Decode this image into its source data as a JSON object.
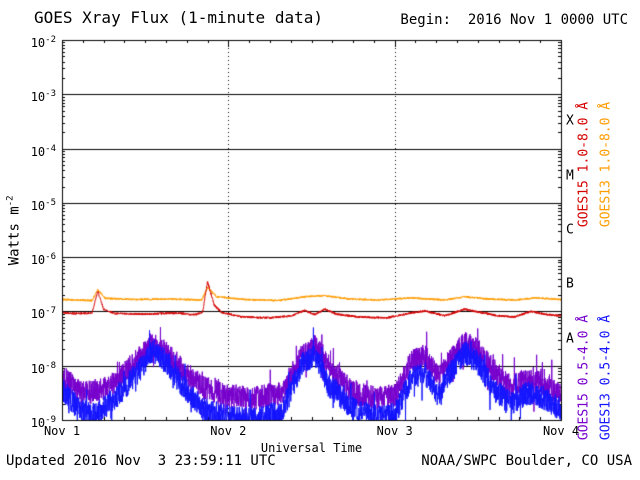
{
  "header": {
    "title": "GOES Xray Flux (1-minute data)",
    "begin_label": "Begin:  2016 Nov 1 0000 UTC"
  },
  "footer": {
    "updated": "Updated 2016 Nov  3 23:59:11 UTC",
    "credit": "NOAA/SWPC Boulder, CO USA"
  },
  "legend": {
    "labels": [
      {
        "text": "GOES15 1.0-8.0 Å",
        "color": "#d40000",
        "column": 0,
        "row": 0
      },
      {
        "text": "GOES13 1.0-8.0 Å",
        "color": "#ff9c00",
        "column": 1,
        "row": 0
      },
      {
        "text": "GOES15 0.5-4.0 Å",
        "color": "#7700cc",
        "column": 0,
        "row": 1
      },
      {
        "text": "GOES13 0.5-4.0 Å",
        "color": "#1414ff",
        "column": 1,
        "row": 1
      }
    ]
  },
  "chart_data": {
    "type": "line",
    "title": "GOES Xray Flux (1-minute data)",
    "xlabel": "Universal Time",
    "ylabel_base": "Watts m",
    "ylabel_exponent": "-2",
    "y_scale": "log10",
    "y_tick_exponents": [
      -2,
      -3,
      -4,
      -5,
      -6,
      -7,
      -8,
      -9
    ],
    "x_tick_labels": [
      "Nov 1",
      "Nov 2",
      "Nov 3",
      "Nov 4"
    ],
    "x_range_days": 3,
    "begin_time": "2016 Nov 1 0000 UTC",
    "grid": {
      "h_line_exponents": [
        -3,
        -4,
        -5,
        -6,
        -7,
        -8
      ],
      "v_dotted_line_days": [
        1,
        2
      ]
    },
    "flare_classes": [
      {
        "letter": "X",
        "lower_exponent": -4
      },
      {
        "letter": "M",
        "lower_exponent": -5
      },
      {
        "letter": "C",
        "lower_exponent": -6
      },
      {
        "letter": "B",
        "lower_exponent": -7
      },
      {
        "letter": "A",
        "lower_exponent": -8
      }
    ],
    "series": [
      {
        "name": "GOES15 1.0-8.0 Å",
        "color": "#d40000",
        "noise_log10": 0.02,
        "points_log10": [
          [
            0,
            -7.02
          ],
          [
            0.08,
            -7.04
          ],
          [
            0.18,
            -7.03
          ],
          [
            0.215,
            -6.63
          ],
          [
            0.25,
            -6.96
          ],
          [
            0.32,
            -7.04
          ],
          [
            0.5,
            -7.05
          ],
          [
            0.68,
            -7.03
          ],
          [
            0.8,
            -7.06
          ],
          [
            0.845,
            -7.02
          ],
          [
            0.875,
            -6.45
          ],
          [
            0.915,
            -6.88
          ],
          [
            0.96,
            -7.02
          ],
          [
            1.08,
            -7.1
          ],
          [
            1.25,
            -7.12
          ],
          [
            1.38,
            -7.08
          ],
          [
            1.46,
            -6.98
          ],
          [
            1.52,
            -7.06
          ],
          [
            1.58,
            -6.96
          ],
          [
            1.65,
            -7.05
          ],
          [
            1.78,
            -7.1
          ],
          [
            1.95,
            -7.12
          ],
          [
            2.08,
            -7.04
          ],
          [
            2.18,
            -6.99
          ],
          [
            2.3,
            -7.08
          ],
          [
            2.42,
            -6.96
          ],
          [
            2.52,
            -7.02
          ],
          [
            2.62,
            -7.08
          ],
          [
            2.72,
            -7.1
          ],
          [
            2.82,
            -7.0
          ],
          [
            2.92,
            -7.06
          ],
          [
            3,
            -7.08
          ]
        ]
      },
      {
        "name": "GOES13 1.0-8.0 Å",
        "color": "#ff9c00",
        "noise_log10": 0.018,
        "points_log10": [
          [
            0,
            -6.78
          ],
          [
            0.18,
            -6.8
          ],
          [
            0.215,
            -6.6
          ],
          [
            0.26,
            -6.76
          ],
          [
            0.45,
            -6.78
          ],
          [
            0.65,
            -6.77
          ],
          [
            0.84,
            -6.79
          ],
          [
            0.875,
            -6.56
          ],
          [
            0.93,
            -6.73
          ],
          [
            1.1,
            -6.78
          ],
          [
            1.3,
            -6.8
          ],
          [
            1.46,
            -6.73
          ],
          [
            1.58,
            -6.71
          ],
          [
            1.72,
            -6.77
          ],
          [
            1.9,
            -6.79
          ],
          [
            2.1,
            -6.75
          ],
          [
            2.3,
            -6.79
          ],
          [
            2.42,
            -6.73
          ],
          [
            2.56,
            -6.77
          ],
          [
            2.72,
            -6.79
          ],
          [
            2.85,
            -6.75
          ],
          [
            3,
            -6.78
          ]
        ]
      },
      {
        "name": "GOES15 0.5-4.0 Å",
        "color": "#7700cc",
        "noise_log10": 0.22,
        "points_log10": [
          [
            0,
            -8.2
          ],
          [
            0.1,
            -8.45
          ],
          [
            0.2,
            -8.5
          ],
          [
            0.32,
            -8.3
          ],
          [
            0.45,
            -7.9
          ],
          [
            0.55,
            -7.62
          ],
          [
            0.63,
            -7.78
          ],
          [
            0.72,
            -8.05
          ],
          [
            0.85,
            -8.4
          ],
          [
            1,
            -8.55
          ],
          [
            1.15,
            -8.6
          ],
          [
            1.32,
            -8.5
          ],
          [
            1.45,
            -7.78
          ],
          [
            1.52,
            -7.62
          ],
          [
            1.6,
            -8.0
          ],
          [
            1.75,
            -8.5
          ],
          [
            1.9,
            -8.6
          ],
          [
            2,
            -8.55
          ],
          [
            2.1,
            -7.92
          ],
          [
            2.18,
            -7.82
          ],
          [
            2.26,
            -8.2
          ],
          [
            2.33,
            -7.9
          ],
          [
            2.42,
            -7.58
          ],
          [
            2.5,
            -7.72
          ],
          [
            2.6,
            -8.1
          ],
          [
            2.7,
            -8.4
          ],
          [
            2.8,
            -8.22
          ],
          [
            2.9,
            -8.35
          ],
          [
            3,
            -8.5
          ]
        ]
      },
      {
        "name": "GOES13 0.5-4.0 Å",
        "color": "#1414ff",
        "noise_log10": 0.22,
        "points_log10": [
          [
            0,
            -8.45
          ],
          [
            0.1,
            -8.8
          ],
          [
            0.2,
            -8.9
          ],
          [
            0.32,
            -8.6
          ],
          [
            0.45,
            -8.15
          ],
          [
            0.55,
            -7.72
          ],
          [
            0.63,
            -7.95
          ],
          [
            0.72,
            -8.35
          ],
          [
            0.85,
            -8.8
          ],
          [
            1,
            -8.95
          ],
          [
            1.15,
            -9.0
          ],
          [
            1.32,
            -8.85
          ],
          [
            1.45,
            -7.95
          ],
          [
            1.52,
            -7.78
          ],
          [
            1.6,
            -8.35
          ],
          [
            1.75,
            -8.8
          ],
          [
            1.9,
            -8.95
          ],
          [
            2,
            -8.9
          ],
          [
            2.1,
            -8.25
          ],
          [
            2.18,
            -8.12
          ],
          [
            2.26,
            -8.55
          ],
          [
            2.33,
            -8.15
          ],
          [
            2.42,
            -7.75
          ],
          [
            2.5,
            -7.95
          ],
          [
            2.6,
            -8.45
          ],
          [
            2.7,
            -8.7
          ],
          [
            2.8,
            -8.5
          ],
          [
            2.9,
            -8.6
          ],
          [
            3,
            -8.8
          ]
        ]
      }
    ]
  }
}
